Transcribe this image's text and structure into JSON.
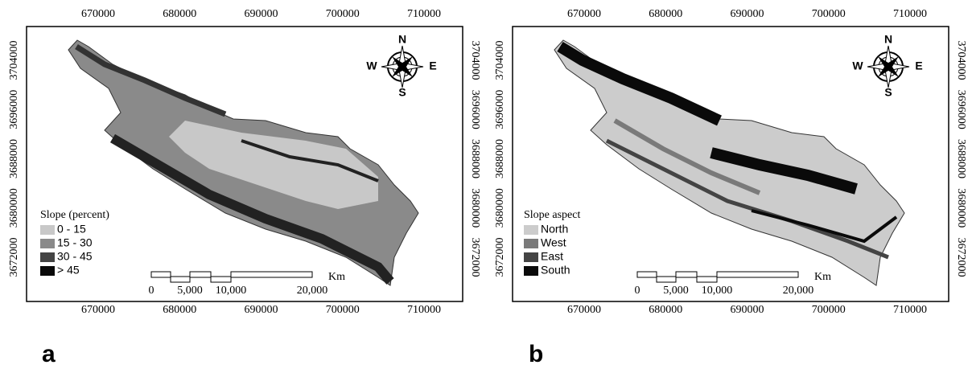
{
  "panels": [
    {
      "label": "a",
      "x_ticks": [
        670000,
        680000,
        690000,
        700000,
        710000
      ],
      "y_ticks": [
        3704000,
        3696000,
        3688000,
        3680000,
        3672000
      ],
      "legend": {
        "title": "Slope (percent)",
        "items": [
          {
            "label": "0 - 15",
            "color": "#c8c8c8"
          },
          {
            "label": "15 - 30",
            "color": "#8a8a8a"
          },
          {
            "label": "30 - 45",
            "color": "#444444"
          },
          {
            "label": ">  45",
            "color": "#0a0a0a"
          }
        ]
      },
      "scale_bar": {
        "labels": [
          "0",
          "5,000",
          "10,000",
          "20,000"
        ],
        "unit": "Km"
      },
      "compass": {
        "north": "N",
        "east": "E",
        "south": "S",
        "west": "W"
      }
    },
    {
      "label": "b",
      "x_ticks": [
        670000,
        680000,
        690000,
        700000,
        710000
      ],
      "y_ticks": [
        3704000,
        3696000,
        3688000,
        3680000,
        3672000
      ],
      "legend": {
        "title": "Slope aspect",
        "items": [
          {
            "label": "North",
            "color": "#cccccc"
          },
          {
            "label": "West",
            "color": "#7a7a7a"
          },
          {
            "label": "East",
            "color": "#444444"
          },
          {
            "label": "South",
            "color": "#0a0a0a"
          }
        ]
      },
      "scale_bar": {
        "labels": [
          "0",
          "5,000",
          "10,000",
          "20,000"
        ],
        "unit": "Km"
      },
      "compass": {
        "north": "N",
        "east": "E",
        "south": "S",
        "west": "W"
      }
    }
  ]
}
